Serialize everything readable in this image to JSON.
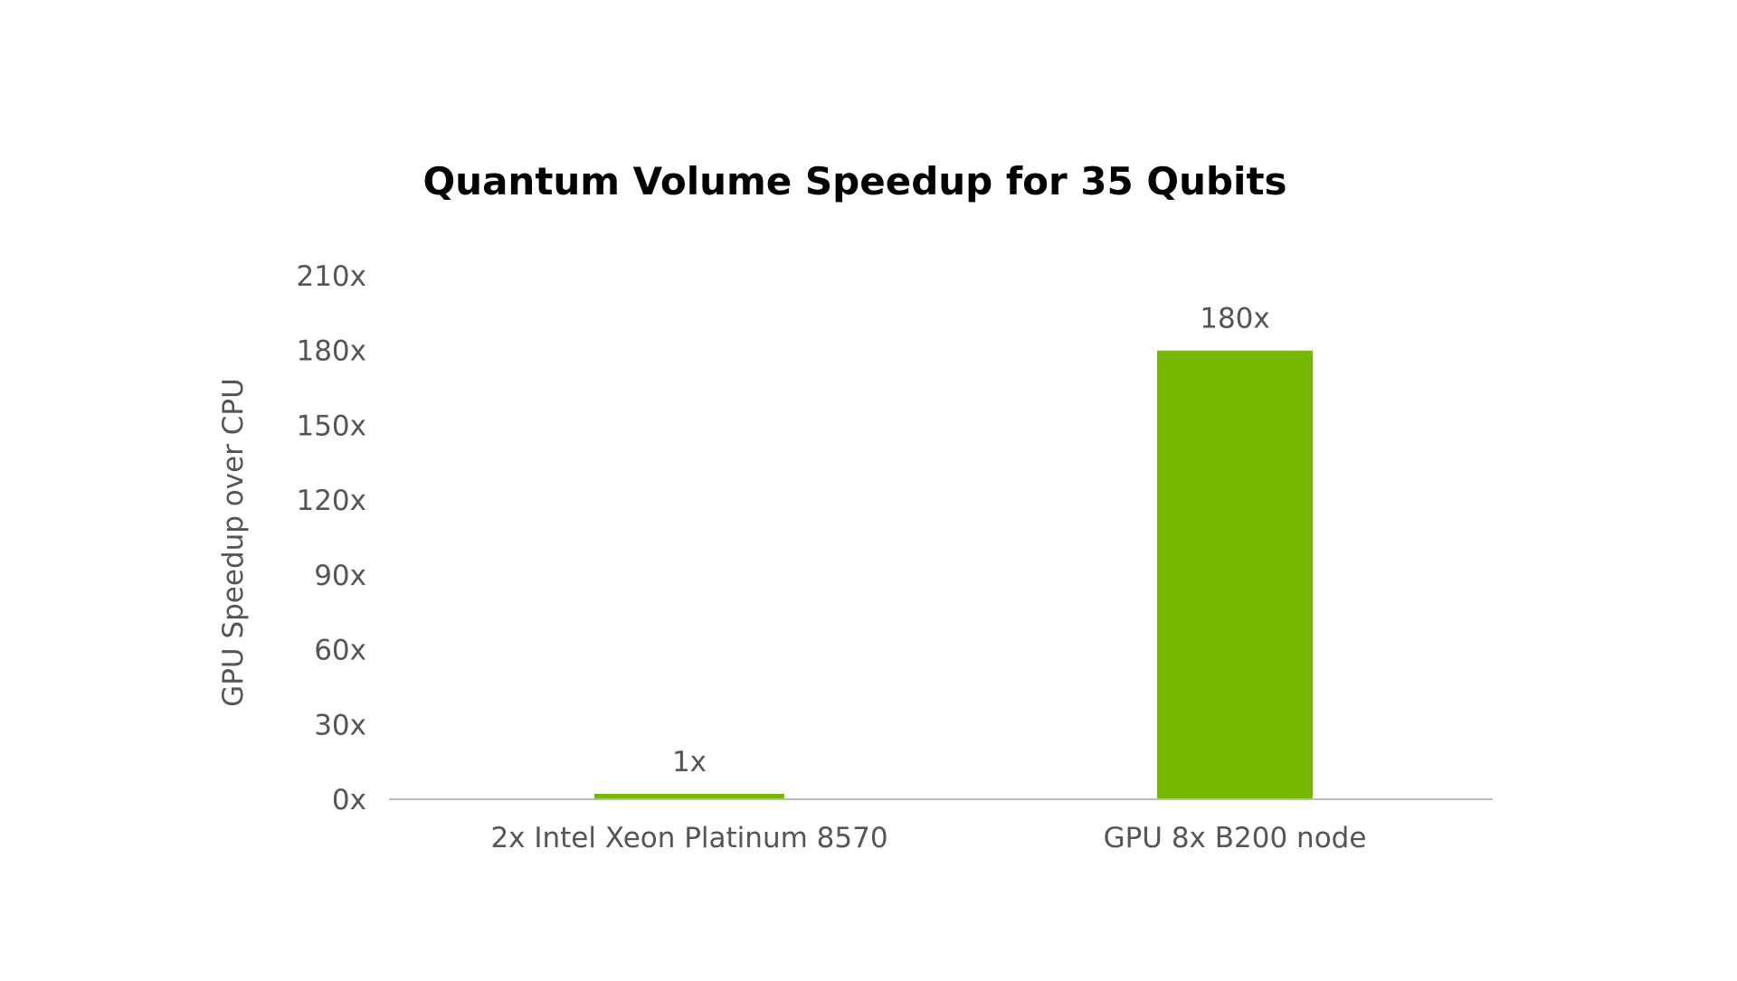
{
  "chart_data": {
    "type": "bar",
    "title": "Quantum Volume Speedup for 35 Qubits",
    "ylabel": "GPU Speedup over CPU",
    "xlabel": "",
    "categories": [
      "2x Intel Xeon Platinum 8570",
      "GPU 8x B200 node"
    ],
    "values": [
      1,
      180
    ],
    "data_labels": [
      "1x",
      "180x"
    ],
    "ylim": [
      0,
      210
    ],
    "yticks": [
      0,
      30,
      60,
      90,
      120,
      150,
      180,
      210
    ],
    "ytick_labels": [
      "0x",
      "30x",
      "60x",
      "90x",
      "120x",
      "150x",
      "180x",
      "210x"
    ],
    "grid": false,
    "legend": "none",
    "colors": {
      "bar": "#76b900",
      "axis_line": "#bbbbbb"
    }
  }
}
